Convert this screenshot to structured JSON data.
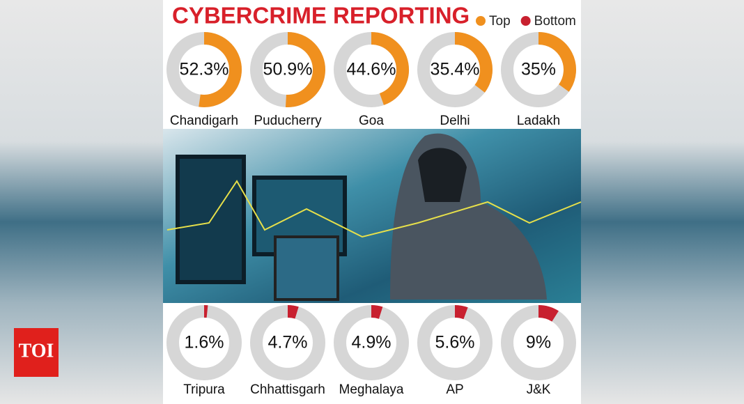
{
  "logo": "TOI",
  "chart_data": {
    "type": "donut",
    "title": "CYBERCRIME REPORTING",
    "track_color": "#d6d6d6",
    "series": [
      {
        "name": "Top",
        "color": "#f0901e",
        "categories": [
          "Chandigarh",
          "Puducherry",
          "Goa",
          "Delhi",
          "Ladakh"
        ],
        "values": [
          52.3,
          50.9,
          44.6,
          35.4,
          35
        ],
        "value_labels": [
          "52.3%",
          "50.9%",
          "44.6%",
          "35.4%",
          "35%"
        ]
      },
      {
        "name": "Bottom",
        "color": "#c8202f",
        "categories": [
          "Tripura",
          "Chhattisgarh",
          "Meghalaya",
          "AP",
          "J&K"
        ],
        "values": [
          1.6,
          4.7,
          4.9,
          5.6,
          9
        ],
        "value_labels": [
          "1.6%",
          "4.7%",
          "4.9%",
          "5.6%",
          "9%"
        ]
      }
    ]
  }
}
